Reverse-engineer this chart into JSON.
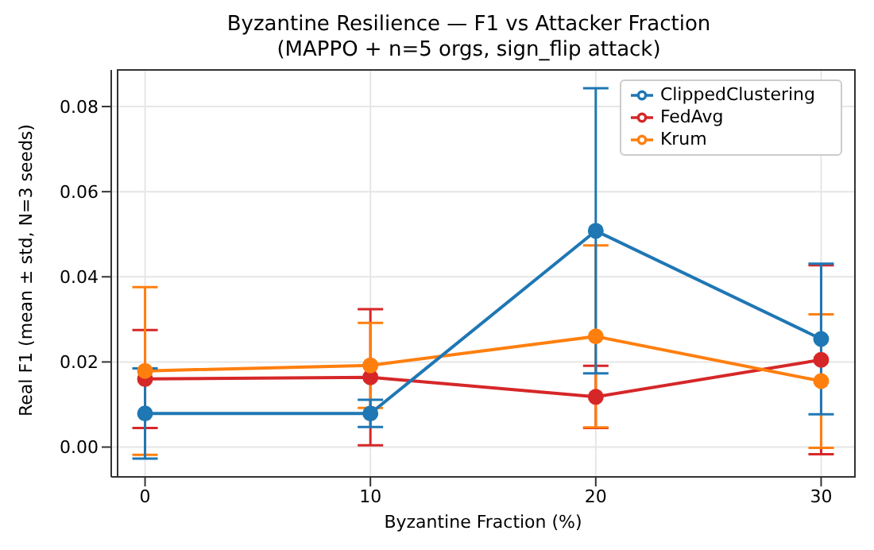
{
  "chart_data": {
    "type": "line",
    "title": "Byzantine Resilience — F1 vs Attacker Fraction",
    "subtitle": "(MAPPO + n=5 orgs, sign_flip attack)",
    "xlabel": "Byzantine Fraction (%)",
    "ylabel": "Real F1 (mean ± std, N=3 seeds)",
    "x": [
      0,
      10,
      20,
      30
    ],
    "series": [
      {
        "name": "FedAvg",
        "color": "#d62728",
        "values": [
          0.016,
          0.0164,
          0.0118,
          0.0205
        ],
        "errors": [
          0.0115,
          0.016,
          0.0073,
          0.0222
        ]
      },
      {
        "name": "Krum",
        "color": "#ff7f0e",
        "values": [
          0.0179,
          0.0192,
          0.026,
          0.0155
        ],
        "errors": [
          0.0197,
          0.01,
          0.0214,
          0.0157
        ]
      },
      {
        "name": "ClippedClustering",
        "color": "#1f77b4",
        "values": [
          0.0079,
          0.0079,
          0.0508,
          0.0254
        ],
        "errors": [
          0.0106,
          0.0032,
          0.0335,
          0.0177
        ]
      }
    ],
    "xlim": [
      -1.5,
      31.5
    ],
    "xticks": [
      0,
      10,
      20,
      30
    ],
    "ylim": [
      -0.007,
      0.0886
    ],
    "yticks": [
      {
        "value": 0,
        "label": "0.00"
      },
      {
        "value": 0.02,
        "label": "0.02"
      },
      {
        "value": 0.04,
        "label": "0.04"
      },
      {
        "value": 0.06,
        "label": "0.06"
      },
      {
        "value": 0.08,
        "label": "0.08"
      }
    ],
    "grid": true,
    "legend": "top right",
    "marker": "circle",
    "line_style": "solid"
  }
}
